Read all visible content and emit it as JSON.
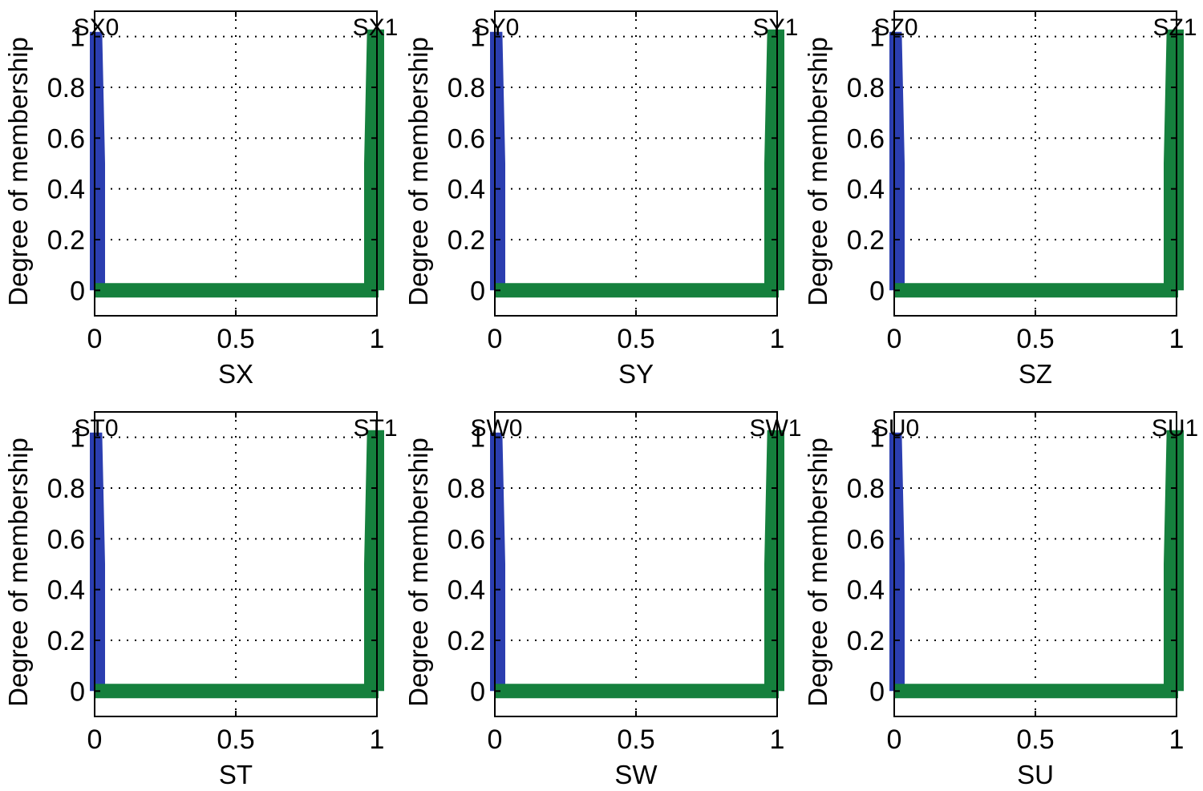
{
  "chart_data": [
    {
      "type": "line",
      "xlabel": "SX",
      "ylabel": "Degree of membership",
      "xlim": [
        0,
        1
      ],
      "ylim": [
        -0.1,
        1.1
      ],
      "xticks": [
        "0",
        "0.5",
        "1"
      ],
      "yticks": [
        "0",
        "0.2",
        "0.4",
        "0.6",
        "0.8",
        "1"
      ],
      "grid": true,
      "series": [
        {
          "name": "SX0",
          "color": "#2b3eb0",
          "x": [
            0,
            0,
            0.01,
            0.02,
            0.02,
            1
          ],
          "y": [
            0,
            1,
            1,
            0.5,
            0,
            0
          ]
        },
        {
          "name": "SX1",
          "color": "#15803d",
          "x": [
            0,
            0.98,
            0.98,
            0.99,
            1,
            1
          ],
          "y": [
            0,
            0,
            0.5,
            1,
            1,
            0
          ]
        }
      ]
    },
    {
      "type": "line",
      "xlabel": "SY",
      "ylabel": "Degree of membership",
      "xlim": [
        0,
        1
      ],
      "ylim": [
        -0.1,
        1.1
      ],
      "xticks": [
        "0",
        "0.5",
        "1"
      ],
      "yticks": [
        "0",
        "0.2",
        "0.4",
        "0.6",
        "0.8",
        "1"
      ],
      "grid": true,
      "series": [
        {
          "name": "SY0",
          "color": "#2b3eb0",
          "x": [
            0,
            0,
            0.01,
            0.02,
            0.02,
            1
          ],
          "y": [
            0,
            1,
            1,
            0.5,
            0,
            0
          ]
        },
        {
          "name": "SY1",
          "color": "#15803d",
          "x": [
            0,
            0.98,
            0.98,
            0.99,
            1,
            1
          ],
          "y": [
            0,
            0,
            0.5,
            1,
            1,
            0
          ]
        }
      ]
    },
    {
      "type": "line",
      "xlabel": "SZ",
      "ylabel": "Degree of membership",
      "xlim": [
        0,
        1
      ],
      "ylim": [
        -0.1,
        1.1
      ],
      "xticks": [
        "0",
        "0.5",
        "1"
      ],
      "yticks": [
        "0",
        "0.2",
        "0.4",
        "0.6",
        "0.8",
        "1"
      ],
      "grid": true,
      "series": [
        {
          "name": "SZ0",
          "color": "#2b3eb0",
          "x": [
            0,
            0,
            0.01,
            0.02,
            0.02,
            1
          ],
          "y": [
            0,
            1,
            1,
            0.5,
            0,
            0
          ]
        },
        {
          "name": "SZ1",
          "color": "#15803d",
          "x": [
            0,
            0.98,
            0.98,
            0.99,
            1,
            1
          ],
          "y": [
            0,
            0,
            0.5,
            1,
            1,
            0
          ]
        }
      ]
    },
    {
      "type": "line",
      "xlabel": "ST",
      "ylabel": "Degree of membership",
      "xlim": [
        0,
        1
      ],
      "ylim": [
        -0.1,
        1.1
      ],
      "xticks": [
        "0",
        "0.5",
        "1"
      ],
      "yticks": [
        "0",
        "0.2",
        "0.4",
        "0.6",
        "0.8",
        "1"
      ],
      "grid": true,
      "series": [
        {
          "name": "ST0",
          "color": "#2b3eb0",
          "x": [
            0,
            0,
            0.01,
            0.02,
            0.02,
            1
          ],
          "y": [
            0,
            1,
            1,
            0.5,
            0,
            0
          ]
        },
        {
          "name": "ST1",
          "color": "#15803d",
          "x": [
            0,
            0.98,
            0.98,
            0.99,
            1,
            1
          ],
          "y": [
            0,
            0,
            0.5,
            1,
            1,
            0
          ]
        }
      ]
    },
    {
      "type": "line",
      "xlabel": "SW",
      "ylabel": "Degree of membership",
      "xlim": [
        0,
        1
      ],
      "ylim": [
        -0.1,
        1.1
      ],
      "xticks": [
        "0",
        "0.5",
        "1"
      ],
      "yticks": [
        "0",
        "0.2",
        "0.4",
        "0.6",
        "0.8",
        "1"
      ],
      "grid": true,
      "series": [
        {
          "name": "SW0",
          "color": "#2b3eb0",
          "x": [
            0,
            0,
            0.01,
            0.02,
            0.02,
            1
          ],
          "y": [
            0,
            1,
            1,
            0.5,
            0,
            0
          ]
        },
        {
          "name": "SW1",
          "color": "#15803d",
          "x": [
            0,
            0.98,
            0.98,
            0.99,
            1,
            1
          ],
          "y": [
            0,
            0,
            0.5,
            1,
            1,
            0
          ]
        }
      ]
    },
    {
      "type": "line",
      "xlabel": "SU",
      "ylabel": "Degree of membership",
      "xlim": [
        0,
        1
      ],
      "ylim": [
        -0.1,
        1.1
      ],
      "xticks": [
        "0",
        "0.5",
        "1"
      ],
      "yticks": [
        "0",
        "0.2",
        "0.4",
        "0.6",
        "0.8",
        "1"
      ],
      "grid": true,
      "series": [
        {
          "name": "SU0",
          "color": "#2b3eb0",
          "x": [
            0,
            0,
            0.01,
            0.02,
            0.02,
            1
          ],
          "y": [
            0,
            1,
            1,
            0.5,
            0,
            0
          ]
        },
        {
          "name": "SU1",
          "color": "#15803d",
          "x": [
            0,
            0.98,
            0.98,
            0.99,
            1,
            1
          ],
          "y": [
            0,
            0,
            0.5,
            1,
            1,
            0
          ]
        }
      ]
    }
  ]
}
